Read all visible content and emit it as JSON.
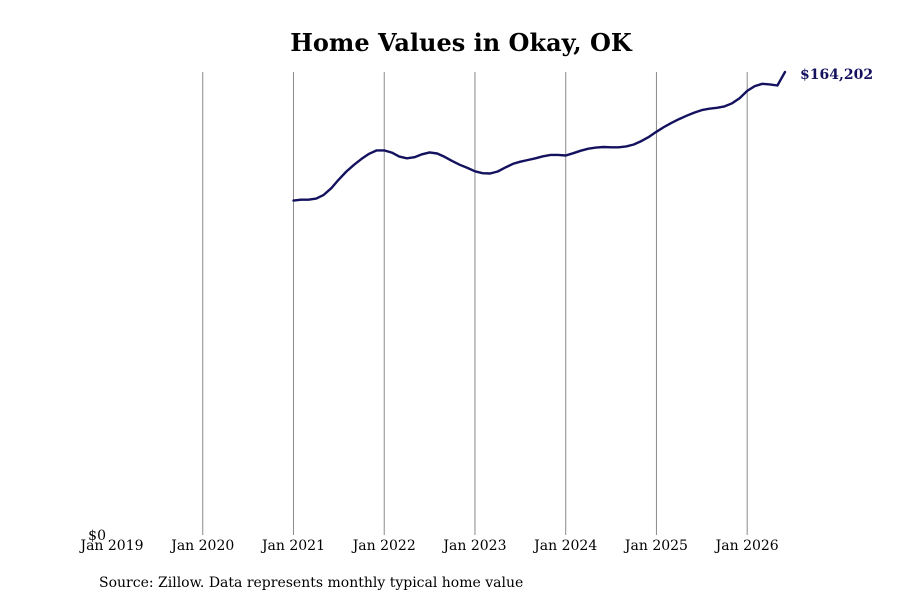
{
  "chart_data": {
    "type": "line",
    "title": "Home Values in Okay, OK",
    "xlabel": "",
    "ylabel": "",
    "x_ticks": [
      "Jan 2019",
      "Jan 2020",
      "Jan 2021",
      "Jan 2022",
      "Jan 2023",
      "Jan 2024",
      "Jan 2025",
      "Jan 2026"
    ],
    "y_ticks": [
      "$0"
    ],
    "xlim": [
      "2019-01",
      "2026-06"
    ],
    "ylim": [
      0,
      164202
    ],
    "grid": "vertical",
    "legend": "none",
    "line_color": "#14125e",
    "end_label": "$164,202",
    "series": [
      {
        "x": [
          "2021-01",
          "2021-02",
          "2021-03",
          "2021-04",
          "2021-05",
          "2021-06",
          "2021-07",
          "2021-08",
          "2021-09",
          "2021-10",
          "2021-11",
          "2021-12",
          "2022-01",
          "2022-02",
          "2022-03",
          "2022-04",
          "2022-05",
          "2022-06",
          "2022-07",
          "2022-08",
          "2022-09",
          "2022-10",
          "2022-11",
          "2022-12",
          "2023-01",
          "2023-02",
          "2023-03",
          "2023-04",
          "2023-05",
          "2023-06",
          "2023-07",
          "2023-08",
          "2023-09",
          "2023-10",
          "2023-11",
          "2023-12",
          "2024-01",
          "2024-02",
          "2024-03",
          "2024-04",
          "2024-05",
          "2024-06",
          "2024-07",
          "2024-08",
          "2024-09",
          "2024-10",
          "2024-11",
          "2024-12",
          "2025-01",
          "2025-02",
          "2025-03",
          "2025-04",
          "2025-05",
          "2025-06",
          "2025-07",
          "2025-08",
          "2025-09",
          "2025-10",
          "2025-11",
          "2025-12",
          "2026-01",
          "2026-02",
          "2026-03",
          "2026-04",
          "2026-05",
          "2026-06"
        ],
        "values": [
          118600,
          118900,
          118900,
          119300,
          120600,
          123000,
          126100,
          128900,
          131300,
          133400,
          135200,
          136400,
          136400,
          135600,
          134200,
          133600,
          134000,
          135000,
          135700,
          135300,
          134100,
          132600,
          131300,
          130200,
          129000,
          128300,
          128200,
          128900,
          130300,
          131600,
          132400,
          133000,
          133600,
          134300,
          134800,
          134800,
          134600,
          135400,
          136300,
          137000,
          137400,
          137600,
          137500,
          137500,
          137800,
          138500,
          139700,
          141200,
          143000,
          144700,
          146200,
          147500,
          148700,
          149800,
          150700,
          151200,
          151500,
          152000,
          153100,
          154900,
          157500,
          159200,
          160000,
          159800,
          159400,
          164202
        ]
      }
    ]
  },
  "source_note": "Source: Zillow. Data represents monthly typical home value"
}
